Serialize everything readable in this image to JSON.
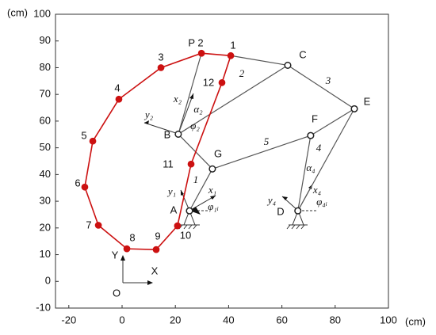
{
  "chart_data": {
    "type": "line",
    "xlabel": "(cm)",
    "ylabel": "(cm)",
    "xlim": [
      -25,
      100
    ],
    "ylim": [
      -10,
      100
    ],
    "xticks": [
      -20,
      0,
      20,
      40,
      60,
      80,
      100
    ],
    "yticks": [
      -10,
      0,
      10,
      20,
      30,
      40,
      50,
      60,
      70,
      80,
      90,
      100
    ],
    "grid": false,
    "series": [
      {
        "color": "#555555",
        "marker": "none",
        "x": [
          25.3,
          33.9
        ],
        "y": [
          26.4,
          42.1
        ]
      },
      {
        "color": "#555555",
        "marker": "none",
        "x": [
          21.1,
          33.9
        ],
        "y": [
          55.1,
          42.1
        ]
      },
      {
        "color": "#555555",
        "marker": "none",
        "x": [
          21.1,
          29.8
        ],
        "y": [
          55.1,
          85.4
        ]
      },
      {
        "color": "#555555",
        "marker": "none",
        "x": [
          21.1,
          62.2
        ],
        "y": [
          55.1,
          80.9
        ]
      },
      {
        "color": "#555555",
        "marker": "none",
        "x": [
          40.8,
          62.2
        ],
        "y": [
          84.5,
          80.9
        ]
      },
      {
        "color": "#555555",
        "marker": "none",
        "x": [
          33.9,
          70.8
        ],
        "y": [
          42.1,
          54.6
        ]
      },
      {
        "color": "#555555",
        "marker": "none",
        "x": [
          62.2,
          87.2
        ],
        "y": [
          80.9,
          64.6
        ]
      },
      {
        "color": "#555555",
        "marker": "none",
        "x": [
          70.8,
          87.2
        ],
        "y": [
          54.6,
          64.6
        ]
      },
      {
        "color": "#555555",
        "marker": "none",
        "x": [
          66,
          87.2
        ],
        "y": [
          26.4,
          64.6
        ]
      },
      {
        "color": "#555555",
        "marker": "none",
        "x": [
          66,
          70.8
        ],
        "y": [
          26.4,
          54.6
        ]
      },
      {
        "color": "#cc1111",
        "marker": "filled",
        "closed": true,
        "x": [
          40.8,
          29.8,
          14.6,
          -1.2,
          -11,
          -14,
          -8.9,
          1.8,
          12.8,
          20.8,
          25.9,
          37.5
        ],
        "y": [
          84.5,
          85.4,
          80,
          68.2,
          52.5,
          35.3,
          21,
          12.2,
          11.9,
          20.8,
          43.9,
          74.4
        ]
      },
      {
        "color": "#222222",
        "marker": "open",
        "line": false,
        "x": [
          25.3,
          21.1,
          62.2,
          66,
          87.2,
          70.8,
          33.9
        ],
        "y": [
          26.4,
          55.1,
          80.9,
          26.4,
          64.6,
          54.6,
          42.1
        ]
      }
    ],
    "annotations": [
      "P 2",
      "1",
      "3",
      "4",
      "5",
      "6",
      "7",
      "8",
      "9",
      "10",
      "11",
      "12",
      "1",
      "2",
      "3",
      "4",
      "5",
      "A",
      "B",
      "C",
      "D",
      "E",
      "F",
      "G",
      "x₂",
      "α₂",
      "φ₂",
      "y₂",
      "x₁",
      "y₁",
      "φ₁ᵢ",
      "x₄",
      "y₄",
      "α₄",
      "φ₄ᵢ",
      "Y",
      "X",
      "O"
    ]
  }
}
